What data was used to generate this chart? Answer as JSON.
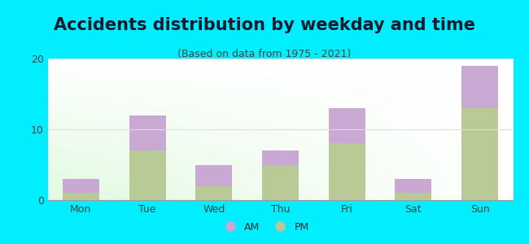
{
  "title": "Accidents distribution by weekday and time",
  "subtitle": "(Based on data from 1975 - 2021)",
  "categories": [
    "Mon",
    "Tue",
    "Wed",
    "Thu",
    "Fri",
    "Sat",
    "Sun"
  ],
  "pm_values": [
    1,
    7,
    2,
    5,
    8,
    1,
    13
  ],
  "am_values": [
    2,
    5,
    3,
    2,
    5,
    2,
    6
  ],
  "am_color": "#c9a8d4",
  "pm_color": "#b8ca96",
  "background_outer": "#00eeff",
  "ylim": [
    0,
    20
  ],
  "yticks": [
    0,
    10,
    20
  ],
  "bar_width": 0.55,
  "title_fontsize": 15,
  "subtitle_fontsize": 9,
  "tick_fontsize": 9,
  "legend_fontsize": 9,
  "grid_color": "#dddddd"
}
